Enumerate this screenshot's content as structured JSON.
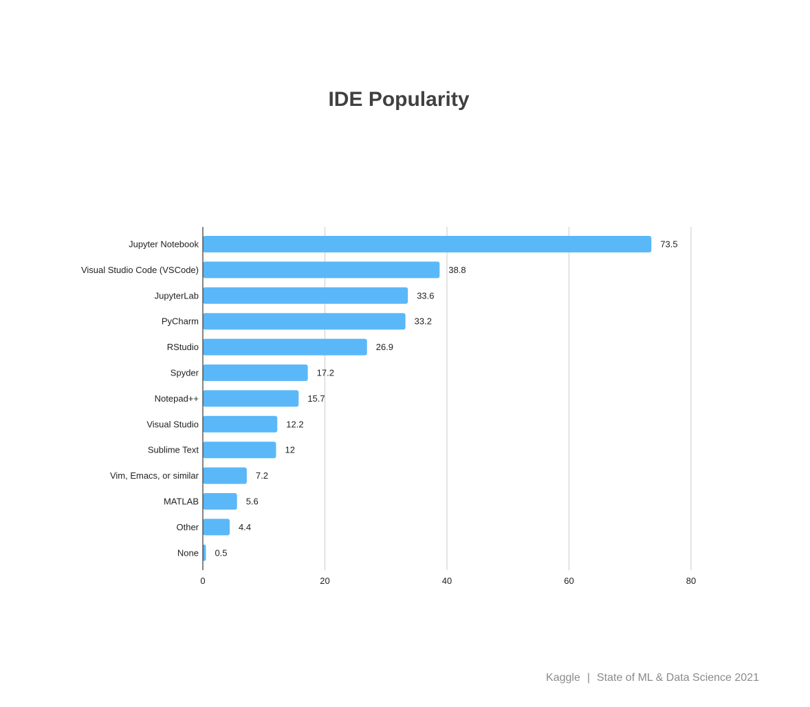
{
  "footer": {
    "brand": "Kaggle",
    "separator": "|",
    "report": "State of ML & Data Science 2021"
  },
  "colors": {
    "bar": "#5ab8f8",
    "grid": "#d2d2d2",
    "axis": "#333333",
    "title": "#404040",
    "footer": "#8a8a8a"
  },
  "chart_data": {
    "type": "bar",
    "orientation": "horizontal",
    "title": "IDE Popularity",
    "xlabel": "",
    "ylabel": "",
    "categories": [
      "Jupyter Notebook",
      "Visual Studio Code (VSCode)",
      "JupyterLab",
      "PyCharm",
      "RStudio",
      "Spyder",
      "Notepad++",
      "Visual Studio",
      "Sublime Text",
      "Vim, Emacs, or similar",
      "MATLAB",
      "Other",
      "None"
    ],
    "values": [
      73.5,
      38.8,
      33.6,
      33.2,
      26.9,
      17.2,
      15.7,
      12.2,
      12,
      7.2,
      5.6,
      4.4,
      0.5
    ],
    "xlim": [
      0,
      80
    ],
    "xticks": [
      0,
      20,
      40,
      60,
      80
    ],
    "grid": true,
    "legend": false
  }
}
